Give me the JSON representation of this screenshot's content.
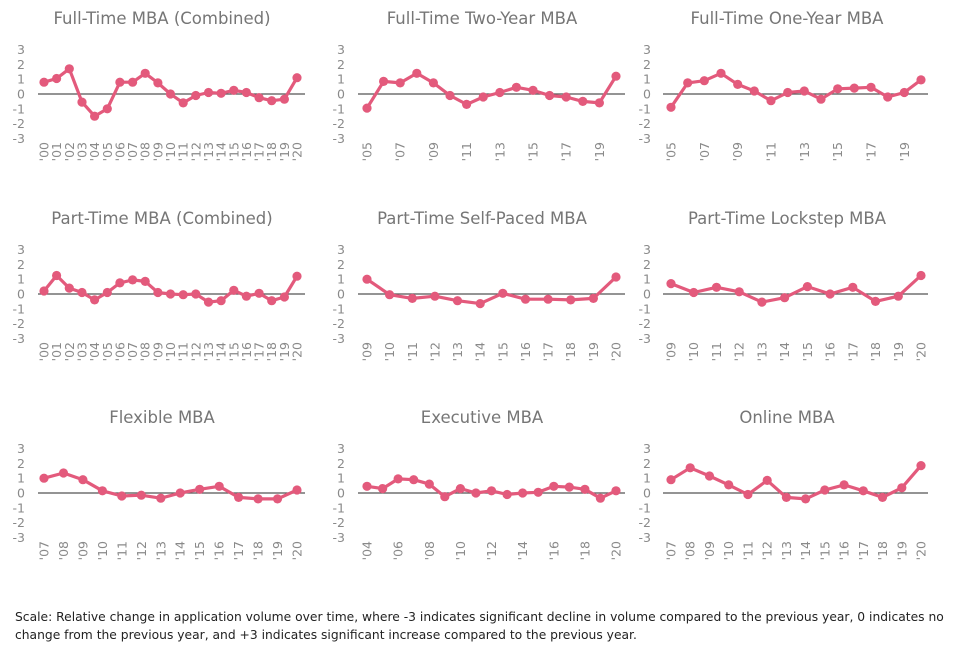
{
  "colors": {
    "series": "#e35a7c",
    "zero_line": "#555555",
    "text": "#767676"
  },
  "footer": {
    "text": "Scale: Relative change in application volume over time, where -3 indicates significant decline in volume compared to the previous year, 0 indicates no change from the previous year, and +3 indicates significant increase compared to the previous year."
  },
  "chart_data": [
    {
      "type": "line",
      "title": "Full-Time MBA (Combined)",
      "ylim": [
        -3,
        3
      ],
      "yticks": [
        "3",
        "2",
        "1",
        "0",
        "-1",
        "-2",
        "-3"
      ],
      "x": [
        "'00",
        "'01",
        "'02",
        "'03",
        "'04",
        "'05",
        "'06",
        "'07",
        "'08",
        "'09",
        "'10",
        "'11",
        "'12",
        "'13",
        "'14",
        "'15",
        "'16",
        "'17",
        "'18",
        "'19",
        "'20"
      ],
      "xticks": [
        "'00",
        "'01",
        "'02",
        "'03",
        "'04",
        "'05",
        "'06",
        "'07",
        "'08",
        "'09",
        "'10",
        "'11",
        "'12",
        "'13",
        "'14",
        "'15",
        "'16",
        "'17",
        "'18",
        "'19",
        "'20"
      ],
      "values": [
        0.8,
        1.05,
        1.7,
        -0.55,
        -1.5,
        -1.0,
        0.8,
        0.8,
        1.4,
        0.75,
        0.0,
        -0.6,
        -0.1,
        0.1,
        0.05,
        0.25,
        0.1,
        -0.25,
        -0.45,
        -0.35,
        1.1
      ]
    },
    {
      "type": "line",
      "title": "Full-Time Two-Year MBA",
      "ylim": [
        -3,
        3
      ],
      "yticks": [
        "3",
        "2",
        "1",
        "0",
        "-1",
        "-2",
        "-3"
      ],
      "x": [
        "'05",
        "'06",
        "'07",
        "'08",
        "'09",
        "'10",
        "'11",
        "'12",
        "'13",
        "'14",
        "'15",
        "'16",
        "'17",
        "'18",
        "'19",
        "'20"
      ],
      "xticks": [
        "'05",
        "'07",
        "'09",
        "'11",
        "'13",
        "'15",
        "'17",
        "'19"
      ],
      "values": [
        -0.95,
        0.85,
        0.75,
        1.4,
        0.75,
        -0.1,
        -0.7,
        -0.2,
        0.1,
        0.45,
        0.25,
        -0.1,
        -0.2,
        -0.5,
        -0.6,
        1.2
      ]
    },
    {
      "type": "line",
      "title": "Full-Time One-Year MBA",
      "ylim": [
        -3,
        3
      ],
      "yticks": [
        "3",
        "2",
        "1",
        "0",
        "-1",
        "-2",
        "-3"
      ],
      "x": [
        "'05",
        "'06",
        "'07",
        "'08",
        "'09",
        "'10",
        "'11",
        "'12",
        "'13",
        "'14",
        "'15",
        "'16",
        "'17",
        "'18",
        "'19",
        "'20"
      ],
      "xticks": [
        "'05",
        "'07",
        "'09",
        "'11",
        "'13",
        "'15",
        "'17",
        "'19"
      ],
      "values": [
        -0.9,
        0.75,
        0.9,
        1.4,
        0.65,
        0.2,
        -0.45,
        0.1,
        0.2,
        -0.35,
        0.35,
        0.4,
        0.45,
        -0.2,
        0.1,
        0.95
      ]
    },
    {
      "type": "line",
      "title": "Part-Time MBA (Combined)",
      "ylim": [
        -3,
        3
      ],
      "yticks": [
        "3",
        "2",
        "1",
        "0",
        "-1",
        "-2",
        "-3"
      ],
      "x": [
        "'00",
        "'01",
        "'02",
        "'03",
        "'04",
        "'05",
        "'06",
        "'07",
        "'08",
        "'09",
        "'10",
        "'11",
        "'12",
        "'13",
        "'14",
        "'15",
        "'16",
        "'17",
        "'18",
        "'19",
        "'20"
      ],
      "xticks": [
        "'00",
        "'01",
        "'02",
        "'03",
        "'04",
        "'05",
        "'06",
        "'07",
        "'08",
        "'09",
        "'10",
        "'11",
        "'12",
        "'13",
        "'14",
        "'15",
        "'16",
        "'17",
        "'18",
        "'19",
        "'20"
      ],
      "values": [
        0.2,
        1.25,
        0.4,
        0.1,
        -0.4,
        0.1,
        0.75,
        0.95,
        0.85,
        0.1,
        0.0,
        -0.05,
        0.0,
        -0.55,
        -0.45,
        0.25,
        -0.15,
        0.05,
        -0.45,
        -0.2,
        1.2
      ]
    },
    {
      "type": "line",
      "title": "Part-Time Self-Paced MBA",
      "ylim": [
        -3,
        3
      ],
      "yticks": [
        "3",
        "2",
        "1",
        "0",
        "-1",
        "-2",
        "-3"
      ],
      "x": [
        "'09",
        "'10",
        "'11",
        "'12",
        "'13",
        "'14",
        "'15",
        "'16",
        "'17",
        "'18",
        "'19",
        "'20"
      ],
      "xticks": [
        "'09",
        "'10",
        "'11",
        "'12",
        "'13",
        "'14",
        "'15",
        "'16",
        "'17",
        "'18",
        "'19",
        "'20"
      ],
      "values": [
        1.0,
        -0.05,
        -0.3,
        -0.15,
        -0.45,
        -0.65,
        0.05,
        -0.35,
        -0.35,
        -0.4,
        -0.3,
        1.15
      ]
    },
    {
      "type": "line",
      "title": "Part-Time Lockstep MBA",
      "ylim": [
        -3,
        3
      ],
      "yticks": [
        "3",
        "2",
        "1",
        "0",
        "-1",
        "-2",
        "-3"
      ],
      "x": [
        "'09",
        "'10",
        "'11",
        "'12",
        "'13",
        "'14",
        "'15",
        "'16",
        "'17",
        "'18",
        "'19",
        "'20"
      ],
      "xticks": [
        "'09",
        "'10",
        "'11",
        "'12",
        "'13",
        "'14",
        "'15",
        "'16",
        "'17",
        "'18",
        "'19",
        "'20"
      ],
      "values": [
        0.7,
        0.1,
        0.45,
        0.15,
        -0.55,
        -0.25,
        0.5,
        0.0,
        0.45,
        -0.5,
        -0.15,
        1.25
      ]
    },
    {
      "type": "line",
      "title": "Flexible MBA",
      "ylim": [
        -3,
        3
      ],
      "yticks": [
        "3",
        "2",
        "1",
        "0",
        "-1",
        "-2",
        "-3"
      ],
      "x": [
        "'07",
        "'08",
        "'09",
        "'10",
        "'11",
        "'12",
        "'13",
        "'14",
        "'15",
        "'16",
        "'17",
        "'18",
        "'19",
        "'20"
      ],
      "xticks": [
        "'07",
        "'08",
        "'09",
        "'10",
        "'11",
        "'12",
        "'13",
        "'14",
        "'15",
        "'16",
        "'17",
        "'18",
        "'19",
        "'20"
      ],
      "values": [
        1.0,
        1.35,
        0.9,
        0.15,
        -0.2,
        -0.15,
        -0.35,
        0.0,
        0.25,
        0.45,
        -0.3,
        -0.4,
        -0.4,
        0.2
      ]
    },
    {
      "type": "line",
      "title": "Executive MBA",
      "ylim": [
        -3,
        3
      ],
      "yticks": [
        "3",
        "2",
        "1",
        "0",
        "-1",
        "-2",
        "-3"
      ],
      "x": [
        "'04",
        "'05",
        "'06",
        "'07",
        "'08",
        "'09",
        "'10",
        "'11",
        "'12",
        "'13",
        "'14",
        "'15",
        "'16",
        "'17",
        "'18",
        "'19",
        "'20"
      ],
      "xticks": [
        "'04",
        "'06",
        "'08",
        "'10",
        "'12",
        "'14",
        "'16",
        "'18",
        "'20"
      ],
      "values": [
        0.45,
        0.3,
        0.95,
        0.9,
        0.6,
        -0.25,
        0.3,
        0.0,
        0.15,
        -0.1,
        0.0,
        0.05,
        0.45,
        0.4,
        0.25,
        -0.35,
        0.15
      ]
    },
    {
      "type": "line",
      "title": "Online MBA",
      "ylim": [
        -3,
        3
      ],
      "yticks": [
        "3",
        "2",
        "1",
        "0",
        "-1",
        "-2",
        "-3"
      ],
      "x": [
        "'07",
        "'08",
        "'09",
        "'10",
        "'11",
        "'12",
        "'13",
        "'14",
        "'15",
        "'16",
        "'17",
        "'18",
        "'19",
        "'20"
      ],
      "xticks": [
        "'07",
        "'08",
        "'09",
        "'10",
        "'11",
        "'12",
        "'13",
        "'14",
        "'15",
        "'16",
        "'17",
        "'18",
        "'19",
        "'20"
      ],
      "values": [
        0.9,
        1.7,
        1.15,
        0.55,
        -0.1,
        0.85,
        -0.3,
        -0.4,
        0.2,
        0.55,
        0.15,
        -0.3,
        0.35,
        1.85
      ]
    }
  ]
}
